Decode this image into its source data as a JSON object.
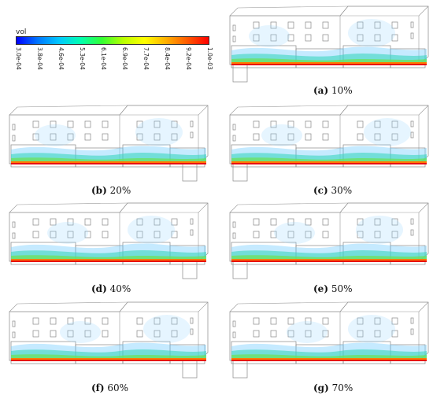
{
  "legend": {
    "title": "vol",
    "ticks": [
      "3.0e-04",
      "3.8e-04",
      "4.6e-04",
      "5.3e-04",
      "6.1e-04",
      "6.9e-04",
      "7.7e-04",
      "8.4e-04",
      "9.2e-04",
      "1.0e-03"
    ]
  },
  "panels": [
    {
      "id": "a",
      "letter": "(a)",
      "label": "10%"
    },
    {
      "id": "b",
      "letter": "(b)",
      "label": "20%"
    },
    {
      "id": "c",
      "letter": "(c)",
      "label": "30%"
    },
    {
      "id": "d",
      "letter": "(d)",
      "label": "40%"
    },
    {
      "id": "e",
      "letter": "(e)",
      "label": "50%"
    },
    {
      "id": "f",
      "letter": "(f)",
      "label": "60%"
    },
    {
      "id": "g",
      "letter": "(g)",
      "label": "70%"
    }
  ]
}
